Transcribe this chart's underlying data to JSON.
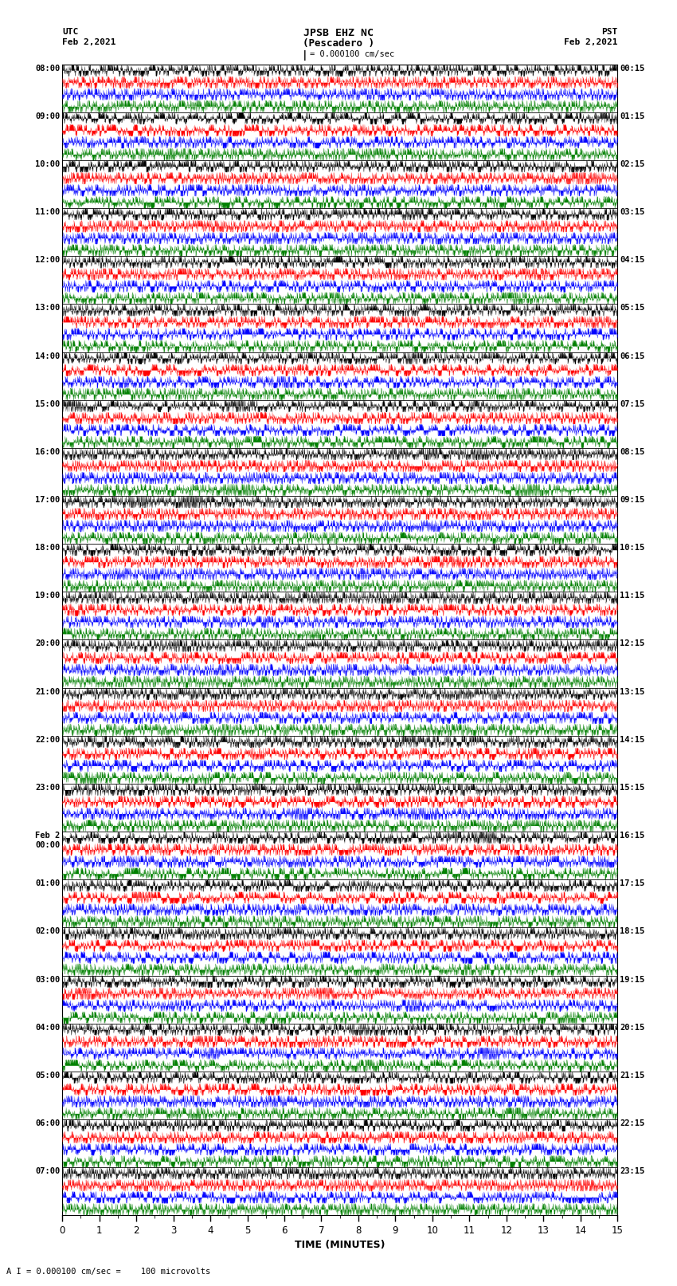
{
  "title_line1": "JPSB EHZ NC",
  "title_line2": "(Pescadero )",
  "title_line3": "I = 0.000100 cm/sec",
  "utc_label": "UTC",
  "utc_date": "Feb 2,2021",
  "pst_label": "PST",
  "pst_date": "Feb 2,2021",
  "xlabel": "TIME (MINUTES)",
  "bottom_label": "A I = 0.000100 cm/sec =    100 microvolts",
  "xlim": [
    0,
    15
  ],
  "xticks": [
    0,
    1,
    2,
    3,
    4,
    5,
    6,
    7,
    8,
    9,
    10,
    11,
    12,
    13,
    14,
    15
  ],
  "n_rows": 96,
  "colors_cycle": [
    "black",
    "red",
    "blue",
    "green"
  ],
  "bg_color": "white",
  "left_times_utc": [
    "08:00",
    "",
    "",
    "",
    "09:00",
    "",
    "",
    "",
    "10:00",
    "",
    "",
    "",
    "11:00",
    "",
    "",
    "",
    "12:00",
    "",
    "",
    "",
    "13:00",
    "",
    "",
    "",
    "14:00",
    "",
    "",
    "",
    "15:00",
    "",
    "",
    "",
    "16:00",
    "",
    "",
    "",
    "17:00",
    "",
    "",
    "",
    "18:00",
    "",
    "",
    "",
    "19:00",
    "",
    "",
    "",
    "20:00",
    "",
    "",
    "",
    "21:00",
    "",
    "",
    "",
    "22:00",
    "",
    "",
    "",
    "23:00",
    "",
    "",
    "",
    "Feb 2\n00:00",
    "",
    "",
    "",
    "01:00",
    "",
    "",
    "",
    "02:00",
    "",
    "",
    "",
    "03:00",
    "",
    "",
    "",
    "04:00",
    "",
    "",
    "",
    "05:00",
    "",
    "",
    "",
    "06:00",
    "",
    "",
    "",
    "07:00",
    "",
    "",
    ""
  ],
  "right_times_pst": [
    "00:15",
    "",
    "",
    "",
    "01:15",
    "",
    "",
    "",
    "02:15",
    "",
    "",
    "",
    "03:15",
    "",
    "",
    "",
    "04:15",
    "",
    "",
    "",
    "05:15",
    "",
    "",
    "",
    "06:15",
    "",
    "",
    "",
    "07:15",
    "",
    "",
    "",
    "08:15",
    "",
    "",
    "",
    "09:15",
    "",
    "",
    "",
    "10:15",
    "",
    "",
    "",
    "11:15",
    "",
    "",
    "",
    "12:15",
    "",
    "",
    "",
    "13:15",
    "",
    "",
    "",
    "14:15",
    "",
    "",
    "",
    "15:15",
    "",
    "",
    "",
    "16:15",
    "",
    "",
    "",
    "17:15",
    "",
    "",
    "",
    "18:15",
    "",
    "",
    "",
    "19:15",
    "",
    "",
    "",
    "20:15",
    "",
    "",
    "",
    "21:15",
    "",
    "",
    "",
    "22:15",
    "",
    "",
    "",
    "23:15",
    "",
    "",
    ""
  ],
  "seed": 42,
  "n_points": 3000
}
